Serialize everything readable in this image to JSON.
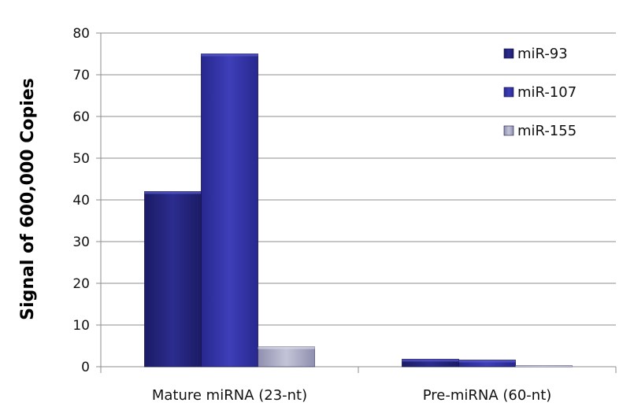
{
  "chart_data": {
    "type": "bar",
    "categories": [
      "Mature miRNA (23-nt)",
      "Pre-miRNA (60-nt)"
    ],
    "series": [
      {
        "name": "miR-93",
        "values": [
          42,
          1.8
        ],
        "color": "#23237e"
      },
      {
        "name": "miR-107",
        "values": [
          75,
          1.6
        ],
        "color": "#3131a6"
      },
      {
        "name": "miR-155",
        "values": [
          4.8,
          0.3
        ],
        "color": "#a7a7c2"
      }
    ],
    "title": "",
    "xlabel": "",
    "ylabel": "Signal of 600,000 Copies",
    "ylim": [
      0,
      80
    ],
    "yticks": [
      0,
      10,
      20,
      30,
      40,
      50,
      60,
      70,
      80
    ],
    "grid": true,
    "legend": "top-right"
  }
}
